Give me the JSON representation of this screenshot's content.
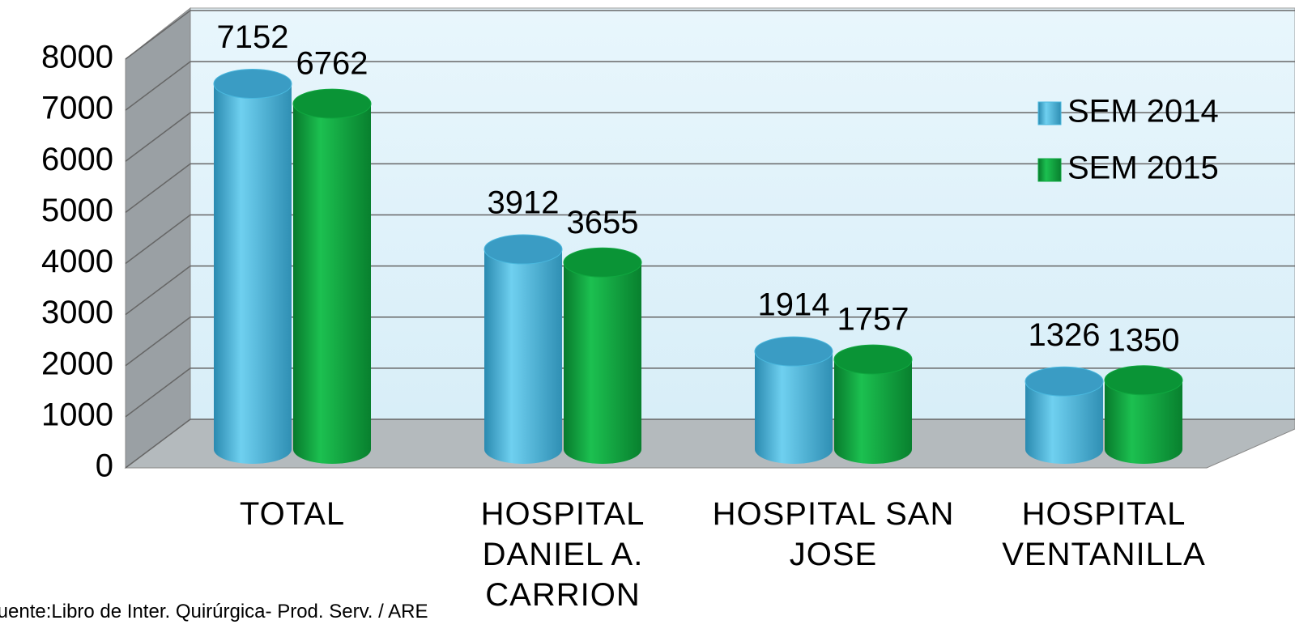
{
  "chart_data": {
    "type": "bar",
    "categories": [
      "TOTAL",
      "HOSPITAL DANIEL A. CARRION",
      "HOSPITAL SAN JOSE",
      "HOSPITAL VENTANILLA"
    ],
    "series": [
      {
        "name": "SEM 2014",
        "color": "#4ab8de",
        "values": [
          7152,
          3912,
          1914,
          1326
        ]
      },
      {
        "name": "SEM 2015",
        "color": "#10a840",
        "values": [
          6762,
          3655,
          1757,
          1350
        ]
      }
    ],
    "ylim": [
      0,
      8000
    ],
    "yticks": [
      0,
      1000,
      2000,
      3000,
      4000,
      5000,
      6000,
      7000,
      8000
    ],
    "grid": true,
    "legend": "right",
    "source": "Fuente:Libro de Inter. Quirúrgica- Prod. Serv. / ARE"
  }
}
